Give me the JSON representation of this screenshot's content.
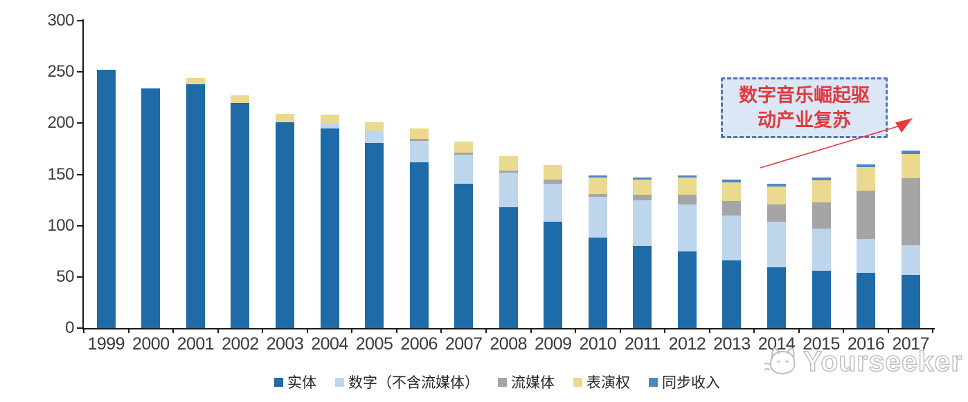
{
  "chart_data": {
    "type": "bar",
    "stacked": true,
    "title": "",
    "xlabel": "",
    "ylabel": "",
    "ylim": [
      0,
      300
    ],
    "yticks": [
      0,
      50,
      100,
      150,
      200,
      250,
      300
    ],
    "grid": false,
    "legend_position": "bottom",
    "categories": [
      "1999",
      "2000",
      "2001",
      "2002",
      "2003",
      "2004",
      "2005",
      "2006",
      "2007",
      "2008",
      "2009",
      "2010",
      "2011",
      "2012",
      "2013",
      "2014",
      "2015",
      "2016",
      "2017"
    ],
    "series": [
      {
        "name": "实体",
        "color": "#1f6ba8",
        "values": [
          252,
          234,
          238,
          220,
          201,
          195,
          181,
          162,
          141,
          118,
          104,
          88,
          80,
          75,
          66,
          59,
          56,
          54,
          52
        ]
      },
      {
        "name": "数字（不含流媒体）",
        "color": "#bdd6ec",
        "values": [
          0,
          0,
          0,
          0,
          0,
          5,
          12,
          21,
          28,
          34,
          37,
          40,
          45,
          46,
          44,
          45,
          41,
          33,
          29
        ]
      },
      {
        "name": "流媒体",
        "color": "#a5a5a5",
        "values": [
          0,
          0,
          0,
          0,
          0,
          0,
          0,
          2,
          2,
          2,
          4,
          3,
          5,
          9,
          14,
          17,
          26,
          47,
          65
        ]
      },
      {
        "name": "表演权",
        "color": "#ebd98f",
        "values": [
          0,
          0,
          6,
          7,
          8,
          8,
          8,
          10,
          11,
          14,
          14,
          16,
          15,
          17,
          18,
          17,
          21,
          23,
          24
        ]
      },
      {
        "name": "同步收入",
        "color": "#4e86c4",
        "values": [
          0,
          0,
          0,
          0,
          0,
          0,
          0,
          0,
          0,
          0,
          0,
          2,
          2,
          2,
          3,
          3,
          3,
          3,
          3
        ]
      }
    ]
  },
  "annotation": {
    "line1": "数字音乐崛起驱",
    "line2": "动产业复苏",
    "text_color": "#e0393e",
    "box_fill": "#dbe7f5",
    "box_border": "#4f74b5",
    "arrow_color": "#e8393d"
  },
  "watermark": {
    "text": "Yourseeker",
    "icon": "cat-logo",
    "color": "#bdbdbd"
  },
  "colors": {
    "axis": "#1a1a1a",
    "tick_label": "#3a3a3a",
    "background": "#ffffff"
  }
}
